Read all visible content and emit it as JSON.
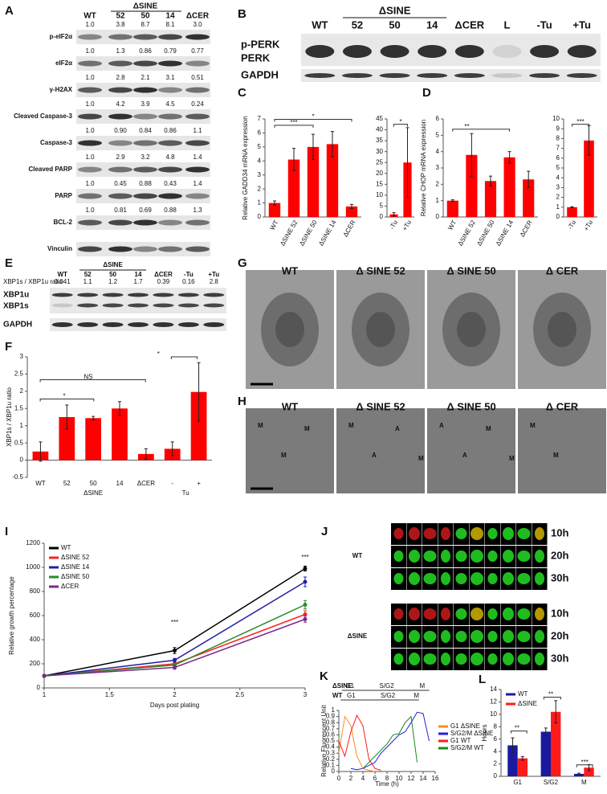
{
  "panel_labels": [
    "A",
    "B",
    "C",
    "D",
    "E",
    "F",
    "G",
    "H",
    "I",
    "J",
    "K",
    "L"
  ],
  "blot_a": {
    "group": "ΔSINE",
    "lanes": [
      "WT",
      "52",
      "50",
      "14",
      "ΔCER"
    ],
    "rows": [
      {
        "name": "p-eIF2α",
        "ratios": [
          "1.0",
          "3.8",
          "8.7",
          "8.1",
          "3.0"
        ]
      },
      {
        "name": "eIF2α",
        "ratios": [
          "1.0",
          "1.3",
          "0.86",
          "0.79",
          "0.77"
        ]
      },
      {
        "name": "γ-H2AX",
        "ratios": [
          "1.0",
          "2.8",
          "2.1",
          "3.1",
          "0.51"
        ]
      },
      {
        "name": "Cleaved Caspase-3",
        "ratios": [
          "1.0",
          "4.2",
          "3.9",
          "4.5",
          "0.24"
        ]
      },
      {
        "name": "Caspase-3",
        "ratios": [
          "1.0",
          "0.90",
          "0.84",
          "0.86",
          "1.1"
        ]
      },
      {
        "name": "Cleaved PARP",
        "ratios": [
          "1.0",
          "2.9",
          "3.2",
          "4.8",
          "1.4"
        ]
      },
      {
        "name": "PARP",
        "ratios": [
          "1.0",
          "0.45",
          "0.88",
          "0.43",
          "1.4"
        ]
      },
      {
        "name": "BCL-2",
        "ratios": [
          "1.0",
          "0.81",
          "0.69",
          "0.88",
          "1.3"
        ]
      },
      {
        "name": "Vinculin"
      }
    ]
  },
  "blot_b": {
    "group": "ΔSINE",
    "lanes": [
      "WT",
      "52",
      "50",
      "14",
      "ΔCER",
      "L",
      "-Tu",
      "+Tu"
    ],
    "bands": [
      "p-PERK",
      "PERK",
      "GAPDH"
    ]
  },
  "blot_e": {
    "group": "ΔSINE",
    "lanes": [
      "WT",
      "52",
      "50",
      "14",
      "ΔCER",
      "-Tu",
      "+Tu"
    ],
    "ratio_label": "XBP1s / XBP1u ratio",
    "ratios": [
      "0.041",
      "1.1",
      "1.2",
      "1.7",
      "0.39",
      "0.16",
      "2.8"
    ],
    "bands": [
      "XBP1u",
      "XBP1s",
      "GAPDH"
    ]
  },
  "micrographs_g": [
    "WT",
    "Δ SINE 52",
    "Δ SINE 50",
    "Δ CER"
  ],
  "micrographs_h": {
    "titles": [
      "WT",
      "Δ SINE 52",
      "Δ SINE 50",
      "Δ CER"
    ],
    "annotations": [
      [
        "M",
        "M",
        "M"
      ],
      [
        "M",
        "A",
        "A",
        "M"
      ],
      [
        "A",
        "A",
        "M",
        "M"
      ],
      [
        "M",
        "M"
      ]
    ]
  },
  "imaging_j": {
    "groups": [
      "WT",
      "ΔSINE"
    ],
    "times": [
      "10h",
      "20h",
      "30h"
    ]
  },
  "chart_data": [
    {
      "type": "bar",
      "ylabel": "Relative GADD34 mRNA expression",
      "categories": [
        "WT",
        "ΔSINE 52",
        "ΔSINE 50",
        "ΔSINE 14",
        "ΔCER"
      ],
      "values": [
        1.0,
        4.1,
        5.0,
        5.2,
        0.75
      ],
      "errors": [
        0.15,
        0.8,
        0.9,
        0.9,
        0.15
      ],
      "color": "#ff0000",
      "ylim": [
        0,
        7
      ],
      "yticks": [
        0,
        1,
        2,
        3,
        4,
        5,
        6,
        7
      ],
      "annotations": [
        "***",
        "*"
      ]
    },
    {
      "type": "bar",
      "categories": [
        "-Tu",
        "+Tu"
      ],
      "values": [
        1.2,
        25
      ],
      "errors": [
        0.8,
        16
      ],
      "color": "#ff0000",
      "ylim": [
        0,
        45
      ],
      "yticks": [
        0,
        5,
        10,
        15,
        20,
        25,
        30,
        35,
        40,
        45
      ],
      "annotations": [
        "*"
      ]
    },
    {
      "type": "bar",
      "ylabel": "Relative CHOP mRNA expression",
      "categories": [
        "WT",
        "ΔSINE 52",
        "ΔSINE 50",
        "ΔSINE 14",
        "ΔCER"
      ],
      "values": [
        1.0,
        3.8,
        2.2,
        3.65,
        2.3
      ],
      "errors": [
        0.05,
        1.3,
        0.3,
        0.35,
        0.5
      ],
      "color": "#ff0000",
      "ylim": [
        0,
        6
      ],
      "yticks": [
        0,
        1,
        2,
        3,
        4,
        5,
        6
      ],
      "annotations": [
        "**"
      ]
    },
    {
      "type": "bar",
      "categories": [
        "-Tu",
        "+Tu"
      ],
      "values": [
        1.0,
        7.8
      ],
      "errors": [
        0.05,
        1.5
      ],
      "color": "#ff0000",
      "ylim": [
        0,
        10
      ],
      "yticks": [
        0,
        1,
        2,
        3,
        4,
        5,
        6,
        7,
        8,
        9,
        10
      ],
      "annotations": [
        "***"
      ]
    },
    {
      "type": "bar",
      "ylabel": "XBP1s / XBP1u ratio",
      "categories": [
        "WT",
        "52",
        "50",
        "14",
        "ΔCER",
        "-",
        "+"
      ],
      "values": [
        0.25,
        1.25,
        1.22,
        1.5,
        0.18,
        0.33,
        1.98
      ],
      "errors": [
        0.28,
        0.35,
        0.05,
        0.2,
        0.15,
        0.2,
        0.85
      ],
      "color": "#ff0000",
      "ylim": [
        -0.5,
        3
      ],
      "yticks": [
        -0.5,
        0,
        0.5,
        1,
        1.5,
        2,
        2.5,
        3
      ],
      "group_labels": [
        "ΔSINE",
        "Tu"
      ],
      "annotations": [
        "NS",
        "*",
        "*"
      ]
    },
    {
      "type": "line",
      "xlabel": "Days post plating",
      "ylabel": "Relative growth percentage",
      "x": [
        1,
        2,
        3
      ],
      "xlim": [
        1,
        3
      ],
      "xticks": [
        1,
        1.5,
        2,
        2.5,
        3
      ],
      "ylim": [
        0,
        1200
      ],
      "yticks": [
        0,
        200,
        400,
        600,
        800,
        1000,
        1200
      ],
      "markers": true,
      "legend": "upper left",
      "annotations": [
        "***",
        "***"
      ],
      "series": [
        {
          "name": "WT",
          "color": "#000000",
          "values": [
            100,
            310,
            990
          ],
          "errors": [
            5,
            25,
            20
          ]
        },
        {
          "name": "ΔSINE 52",
          "color": "#ff2020",
          "values": [
            100,
            200,
            610
          ],
          "errors": [
            5,
            15,
            30
          ]
        },
        {
          "name": "ΔSINE 14",
          "color": "#1f1fa8",
          "values": [
            100,
            230,
            880
          ],
          "errors": [
            5,
            15,
            40
          ]
        },
        {
          "name": "ΔSINE 50",
          "color": "#2a8a2a",
          "values": [
            100,
            190,
            690
          ],
          "errors": [
            5,
            15,
            35
          ]
        },
        {
          "name": "ΔCER",
          "color": "#7a2a8a",
          "values": [
            100,
            170,
            570
          ],
          "errors": [
            5,
            15,
            25
          ]
        }
      ]
    },
    {
      "type": "line",
      "xlabel": "Time (h)",
      "ylabel": "Relative Fluorescent Unit",
      "x": [
        0,
        1,
        2,
        3,
        4,
        5,
        6,
        7,
        8,
        9,
        10,
        11,
        12,
        13,
        14,
        15,
        16
      ],
      "xlim": [
        0,
        16
      ],
      "xticks": [
        0,
        2,
        4,
        6,
        8,
        10,
        12,
        14,
        16
      ],
      "ylim": [
        0,
        1
      ],
      "yticks": [
        0,
        0.1,
        0.2,
        0.3,
        0.4,
        0.5,
        0.6,
        0.7,
        0.8,
        0.9,
        1
      ],
      "legend": "right",
      "phase_rows": [
        {
          "name": "ΔSINE",
          "phases": [
            "G1",
            "S/G2",
            "M"
          ]
        },
        {
          "name": "WT",
          "phases": [
            "G1",
            "S/G2",
            "M"
          ]
        }
      ],
      "series": [
        {
          "name": "G1 ΔSINE",
          "color": "#ff8c1a",
          "values": [
            0.3,
            0.9,
            0.75,
            0.25,
            0.05,
            0.02,
            0.0,
            null,
            null,
            null,
            null,
            null,
            null,
            null,
            null,
            null,
            null
          ]
        },
        {
          "name": "S/G2/M ΔSINE",
          "color": "#2020e0",
          "values": [
            null,
            null,
            0.05,
            0.03,
            0.05,
            0.1,
            0.15,
            0.3,
            0.4,
            0.5,
            0.6,
            0.65,
            0.8,
            0.97,
            0.95,
            0.5,
            null
          ]
        },
        {
          "name": "G1 WT",
          "color": "#ff1a1a",
          "values": [
            0.5,
            0.25,
            0.65,
            0.92,
            0.75,
            0.2,
            0.05,
            0.02,
            null,
            null,
            null,
            null,
            null,
            null,
            null,
            null,
            null
          ]
        },
        {
          "name": "S/G2/M WT",
          "color": "#1a8a1a",
          "values": [
            null,
            null,
            null,
            null,
            0.05,
            0.15,
            0.25,
            0.35,
            0.45,
            0.6,
            0.62,
            0.8,
            0.9,
            0.15,
            null,
            null,
            null
          ]
        }
      ]
    },
    {
      "type": "bar",
      "ylabel": "Hours",
      "categories": [
        "G1",
        "S/G2",
        "M"
      ],
      "ylim": [
        0,
        14
      ],
      "yticks": [
        0,
        2,
        4,
        6,
        8,
        10,
        12,
        14
      ],
      "legend": "upper left",
      "annotations": [
        "**",
        "**",
        "***"
      ],
      "series": [
        {
          "name": "WT",
          "color": "#1a1aa0",
          "values": [
            5.0,
            7.2,
            0.4
          ],
          "errors": [
            1.2,
            0.6,
            0.1
          ]
        },
        {
          "name": "ΔSINE",
          "color": "#ff1a1a",
          "values": [
            2.9,
            10.4,
            1.4
          ],
          "errors": [
            0.3,
            1.8,
            0.5
          ]
        }
      ]
    }
  ]
}
